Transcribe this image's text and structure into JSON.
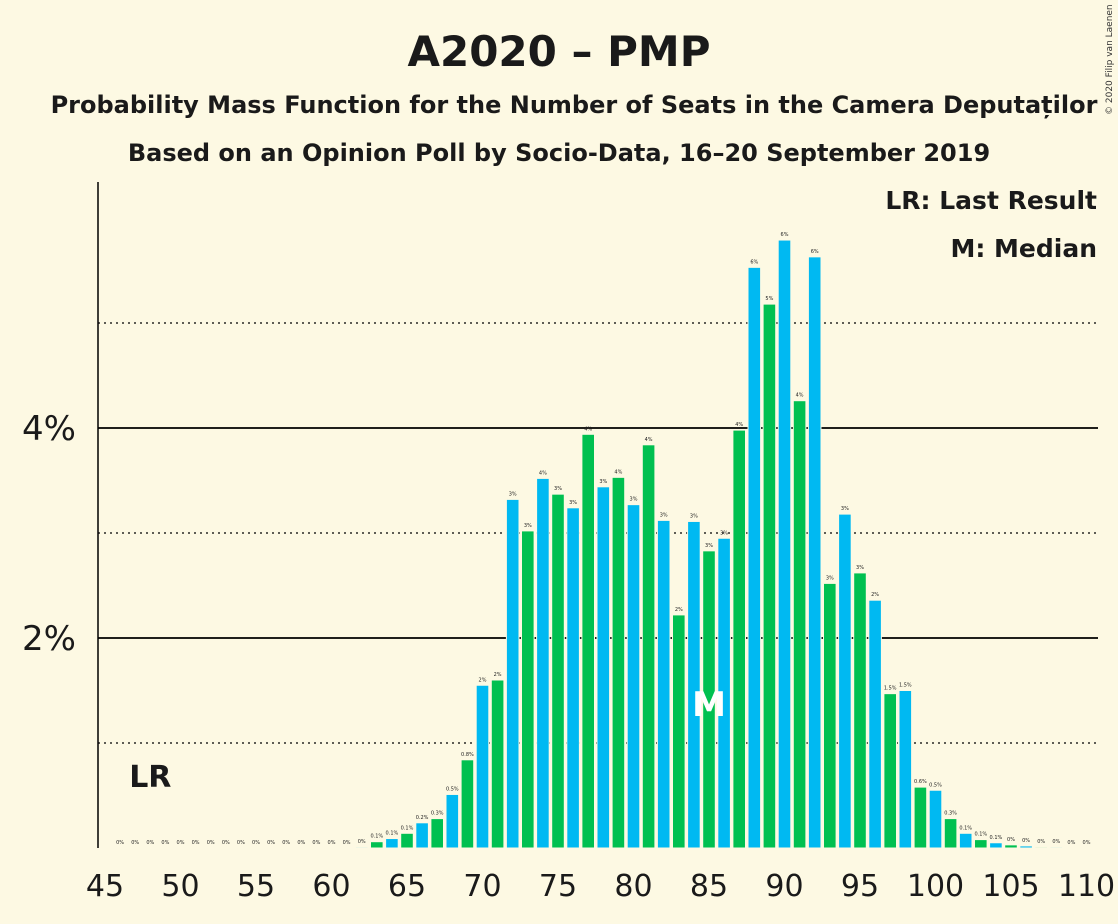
{
  "chart_data": {
    "type": "bar",
    "title": "A2020 – PMP",
    "subtitle": "Probability Mass Function for the Number of Seats in the Camera Deputaților",
    "subtitle2": "Based on an Opinion Poll by Socio-Data, 16–20 September 2019",
    "copyright": "© 2020 Filip van Laenen",
    "legend": {
      "placement": "top-right",
      "items": [
        "LR: Last Result",
        "M: Median"
      ]
    },
    "last_result": {
      "seat": 48,
      "label": "LR"
    },
    "median": {
      "seat": 85,
      "label": "M"
    },
    "ylim": [
      0,
      6.3
    ],
    "yticks": [
      {
        "value": 2,
        "label": "2%"
      },
      {
        "value": 4,
        "label": "4%"
      }
    ],
    "ygrid_solid": [
      2,
      4
    ],
    "ygrid_dotted": [
      1,
      3,
      5
    ],
    "xlim": [
      45,
      110
    ],
    "xticks": [
      45,
      50,
      55,
      60,
      65,
      70,
      75,
      80,
      85,
      90,
      95,
      100,
      105,
      110
    ],
    "colors": {
      "even": "#00b9f2",
      "odd": "#00c050",
      "background": "#fdf9e3"
    },
    "x": [
      46,
      47,
      48,
      49,
      50,
      51,
      52,
      53,
      54,
      55,
      56,
      57,
      58,
      59,
      60,
      61,
      62,
      63,
      64,
      65,
      66,
      67,
      68,
      69,
      70,
      71,
      72,
      73,
      74,
      75,
      76,
      77,
      78,
      79,
      80,
      81,
      82,
      83,
      84,
      85,
      86,
      87,
      88,
      89,
      90,
      91,
      92,
      93,
      94,
      95,
      96,
      97,
      98,
      99,
      100,
      101,
      102,
      103,
      104,
      105,
      106,
      107,
      108,
      109,
      110
    ],
    "values": [
      0,
      0,
      0,
      0,
      0,
      0,
      0,
      0,
      0,
      0,
      0,
      0,
      0,
      0,
      0,
      0,
      0.01,
      0.06,
      0.09,
      0.14,
      0.24,
      0.28,
      0.51,
      0.84,
      1.55,
      1.6,
      3.32,
      3.02,
      3.52,
      3.37,
      3.24,
      3.94,
      3.44,
      3.53,
      3.27,
      3.84,
      3.12,
      2.22,
      3.11,
      2.83,
      2.95,
      3.98,
      5.53,
      5.18,
      5.79,
      4.26,
      5.63,
      2.52,
      3.18,
      2.62,
      2.36,
      1.47,
      1.5,
      0.58,
      0.55,
      0.28,
      0.14,
      0.08,
      0.05,
      0.03,
      0.02,
      0.01,
      0.01,
      0,
      0
    ],
    "labels": [
      "0%",
      "0%",
      "0%",
      "0%",
      "0%",
      "0%",
      "0%",
      "0%",
      "0%",
      "0%",
      "0%",
      "0%",
      "0%",
      "0%",
      "0%",
      "0%",
      "0%",
      "0.1%",
      "0.1%",
      "0.1%",
      "0.2%",
      "0.3%",
      "0.5%",
      "0.8%",
      "2%",
      "2%",
      "3%",
      "3%",
      "4%",
      "3%",
      "3%",
      "4%",
      "3%",
      "4%",
      "3%",
      "4%",
      "3%",
      "2%",
      "3%",
      "3%",
      "3%",
      "4%",
      "6%",
      "5%",
      "6%",
      "4%",
      "6%",
      "3%",
      "3%",
      "3%",
      "2%",
      "1.5%",
      "1.5%",
      "0.6%",
      "0.5%",
      "0.3%",
      "0.1%",
      "0.1%",
      "0.1%",
      "0%",
      "0%",
      "0%",
      "0%",
      "0%",
      "0%"
    ]
  }
}
